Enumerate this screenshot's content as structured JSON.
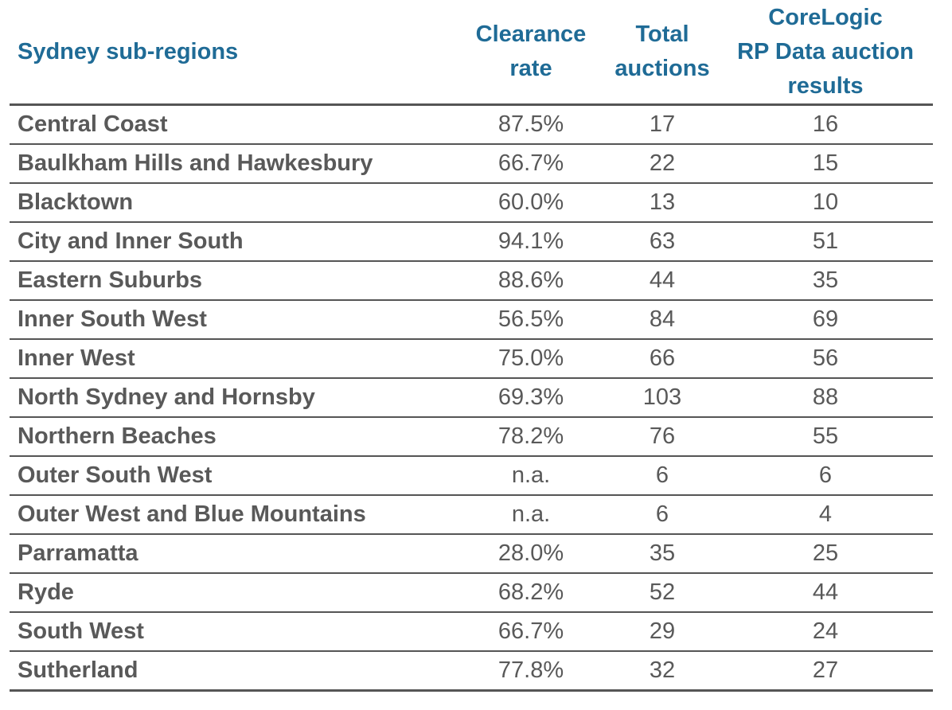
{
  "table": {
    "headers": {
      "region": "Sydney sub-regions",
      "clearance_rate": [
        "Clearance",
        "rate"
      ],
      "total_auctions": [
        "Total",
        "auctions"
      ],
      "results": [
        "CoreLogic",
        "RP Data auction",
        "results"
      ]
    },
    "rows": [
      {
        "region": "Central Coast",
        "clearance_rate": "87.5%",
        "total_auctions": "17",
        "results": "16"
      },
      {
        "region": "Baulkham Hills and Hawkesbury",
        "clearance_rate": "66.7%",
        "total_auctions": "22",
        "results": "15"
      },
      {
        "region": "Blacktown",
        "clearance_rate": "60.0%",
        "total_auctions": "13",
        "results": "10"
      },
      {
        "region": "City and Inner South",
        "clearance_rate": "94.1%",
        "total_auctions": "63",
        "results": "51"
      },
      {
        "region": "Eastern Suburbs",
        "clearance_rate": "88.6%",
        "total_auctions": "44",
        "results": "35"
      },
      {
        "region": "Inner South West",
        "clearance_rate": "56.5%",
        "total_auctions": "84",
        "results": "69"
      },
      {
        "region": "Inner West",
        "clearance_rate": "75.0%",
        "total_auctions": "66",
        "results": "56"
      },
      {
        "region": "North Sydney and Hornsby",
        "clearance_rate": "69.3%",
        "total_auctions": "103",
        "results": "88"
      },
      {
        "region": "Northern Beaches",
        "clearance_rate": "78.2%",
        "total_auctions": "76",
        "results": "55"
      },
      {
        "region": "Outer South West",
        "clearance_rate": "n.a.",
        "total_auctions": "6",
        "results": "6"
      },
      {
        "region": "Outer West and Blue Mountains",
        "clearance_rate": "n.a.",
        "total_auctions": "6",
        "results": "4"
      },
      {
        "region": "Parramatta",
        "clearance_rate": "28.0%",
        "total_auctions": "35",
        "results": "25"
      },
      {
        "region": "Ryde",
        "clearance_rate": "68.2%",
        "total_auctions": "52",
        "results": "44"
      },
      {
        "region": "South West",
        "clearance_rate": "66.7%",
        "total_auctions": "29",
        "results": "24"
      },
      {
        "region": "Sutherland",
        "clearance_rate": "77.8%",
        "total_auctions": "32",
        "results": "27"
      }
    ]
  },
  "colors": {
    "header_text": "#1f6b96",
    "body_text": "#595959",
    "rule": "#555555"
  }
}
